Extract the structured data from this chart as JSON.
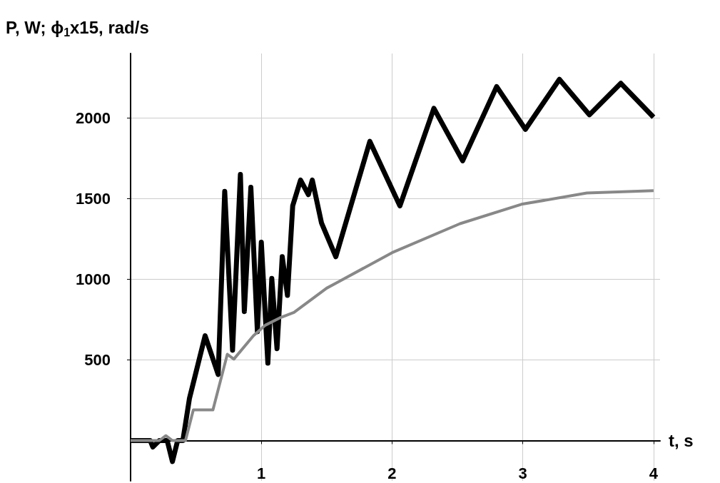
{
  "chart_data": {
    "type": "line",
    "ylabel": "P, W; ϕ$_{1}$x15, rad/s",
    "xlabel": "t, s",
    "xlim": [
      0,
      4.05
    ],
    "ylim": [
      -250,
      2400
    ],
    "xticks": [
      1,
      2,
      3,
      4
    ],
    "yticks": [
      500,
      1000,
      1500,
      2000
    ],
    "grid": true,
    "marker": "none",
    "series": [
      {
        "color": "#000000",
        "x": [
          0,
          0.15,
          0.17,
          0.22,
          0.28,
          0.32,
          0.36,
          0.4,
          0.45,
          0.49,
          0.57,
          0.67,
          0.72,
          0.78,
          0.84,
          0.87,
          0.92,
          0.97,
          1.0,
          1.05,
          1.08,
          1.12,
          1.16,
          1.2,
          1.24,
          1.3,
          1.36,
          1.39,
          1.46,
          1.57,
          1.83,
          2.06,
          2.32,
          2.54,
          2.8,
          3.02,
          3.28,
          3.51,
          3.75,
          4.0
        ],
        "values": [
          0,
          0,
          -40,
          0,
          0,
          -130,
          0,
          0,
          260,
          390,
          650,
          410,
          1545,
          560,
          1650,
          800,
          1570,
          675,
          1230,
          480,
          1005,
          570,
          1140,
          900,
          1455,
          1615,
          1525,
          1615,
          1350,
          1140,
          1855,
          1455,
          2060,
          1735,
          2195,
          1930,
          2240,
          2020,
          2215,
          2005
        ]
      },
      {
        "color": "#888888",
        "x": [
          0,
          0.22,
          0.27,
          0.32,
          0.42,
          0.48,
          0.63,
          0.74,
          0.79,
          0.94,
          1.03,
          1.14,
          1.25,
          1.5,
          1.57,
          2.0,
          2.52,
          2.99,
          3.49,
          4.0
        ],
        "values": [
          0,
          0,
          30,
          0,
          0,
          190,
          190,
          535,
          505,
          650,
          715,
          760,
          795,
          945,
          975,
          1165,
          1345,
          1465,
          1535,
          1550
        ]
      }
    ]
  }
}
